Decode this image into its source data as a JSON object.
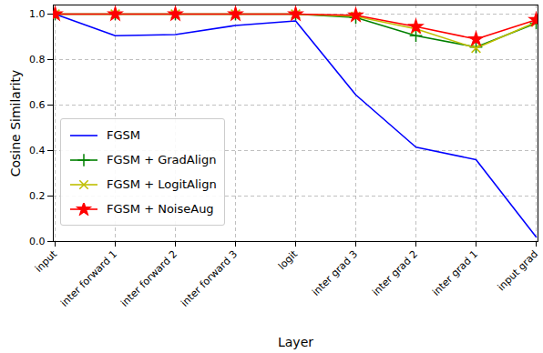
{
  "chart_data": {
    "type": "line",
    "x_label": "Layer",
    "y_label": "Cosine Similarity",
    "categories": [
      "input",
      "inter forward 1",
      "inter forward 2",
      "inter forward 3",
      "logit",
      "inter grad 3",
      "inter grad 2",
      "inter grad 1",
      "input grad"
    ],
    "series": [
      {
        "name": "FGSM",
        "color": "#0000ff",
        "values": [
          1.0,
          0.905,
          0.91,
          0.95,
          0.97,
          0.645,
          0.415,
          0.36,
          0.02
        ]
      },
      {
        "name": "FGSM + GradAlign",
        "color": "#008000",
        "marker": "plus",
        "values": [
          1.0,
          1.0,
          1.0,
          1.0,
          1.0,
          0.985,
          0.905,
          0.855,
          0.96
        ]
      },
      {
        "name": "FGSM + LogitAlign",
        "color": "#bfbf00",
        "marker": "times",
        "values": [
          1.0,
          1.0,
          1.0,
          1.0,
          1.0,
          0.99,
          0.935,
          0.85,
          0.965
        ]
      },
      {
        "name": "FGSM + NoiseAug",
        "color": "#ff0000",
        "marker": "star",
        "values": [
          1.0,
          1.0,
          1.0,
          1.0,
          1.0,
          0.995,
          0.945,
          0.89,
          0.975
        ]
      }
    ],
    "ylim": [
      0,
      1.04
    ],
    "yticks": [
      {
        "value": 0,
        "label": "0.0"
      },
      0.2,
      0.4,
      0.6,
      0.8,
      {
        "value": 1,
        "label": "1.0"
      }
    ],
    "grid": true,
    "legend": "lower left"
  }
}
